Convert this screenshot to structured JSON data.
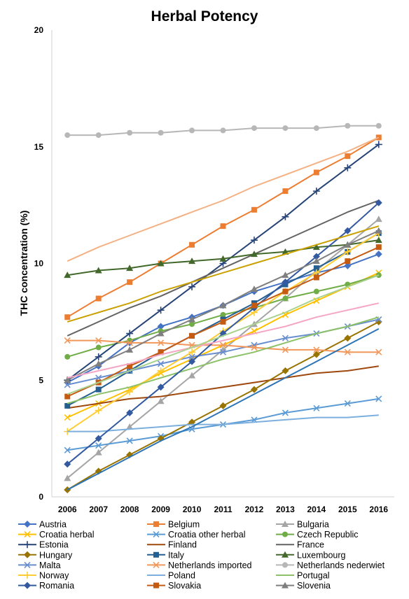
{
  "chart_data": {
    "type": "line",
    "title": "Herbal Potency",
    "xlabel": "",
    "ylabel": "THC concentration (%)",
    "ylim": [
      0,
      20
    ],
    "yticks": [
      0,
      5,
      10,
      15,
      20
    ],
    "x": [
      "2006",
      "2007",
      "2008",
      "2009",
      "2010",
      "2011",
      "2012",
      "2013",
      "2014",
      "2015",
      "2016"
    ],
    "grid": false,
    "legend_position": "bottom",
    "series": [
      {
        "name": "Austria",
        "color": "#4472C4",
        "marker": "diamond",
        "values": [
          4.9,
          5.6,
          6.6,
          7.3,
          7.7,
          8.2,
          8.8,
          9.2,
          9.6,
          9.9,
          10.4
        ]
      },
      {
        "name": "Belgium",
        "color": "#ED7D31",
        "marker": "square",
        "values": [
          7.7,
          8.5,
          9.2,
          10.0,
          10.8,
          11.6,
          12.3,
          13.1,
          13.9,
          14.6,
          15.4
        ]
      },
      {
        "name": "Bulgaria",
        "color": "#A5A5A5",
        "marker": "triangle",
        "values": [
          0.8,
          1.9,
          3.0,
          4.1,
          5.2,
          6.3,
          7.4,
          8.5,
          9.7,
          10.8,
          11.9
        ]
      },
      {
        "name": "Croatia herbal",
        "color": "#FFC000",
        "marker": "x",
        "values": [
          3.4,
          4.0,
          4.6,
          5.3,
          5.9,
          6.5,
          7.1,
          7.8,
          8.4,
          9.0,
          9.6
        ]
      },
      {
        "name": "Croatia other herbal",
        "color": "#5B9BD5",
        "marker": "x",
        "values": [
          2.0,
          2.2,
          2.4,
          2.6,
          2.9,
          3.1,
          3.3,
          3.6,
          3.8,
          4.0,
          4.2
        ]
      },
      {
        "name": "Czech Republic",
        "color": "#70AD47",
        "marker": "circle",
        "values": [
          6.0,
          6.4,
          6.7,
          7.1,
          7.4,
          7.8,
          8.1,
          8.5,
          8.8,
          9.1,
          9.5
        ]
      },
      {
        "name": "Estonia",
        "color": "#264478",
        "marker": "plus",
        "values": [
          5.0,
          6.0,
          7.0,
          8.0,
          9.0,
          10.0,
          11.0,
          12.0,
          13.1,
          14.1,
          15.1
        ]
      },
      {
        "name": "Finland",
        "color": "#9E480E",
        "marker": "none",
        "values": [
          3.8,
          4.0,
          4.2,
          4.3,
          4.5,
          4.7,
          4.9,
          5.1,
          5.3,
          5.4,
          5.6
        ]
      },
      {
        "name": "France",
        "color": "#636363",
        "marker": "none",
        "values": [
          6.9,
          7.5,
          8.1,
          8.6,
          9.2,
          9.8,
          10.4,
          11.0,
          11.6,
          12.2,
          12.7
        ]
      },
      {
        "name": "Hungary",
        "color": "#997300",
        "marker": "diamond",
        "values": [
          0.3,
          1.1,
          1.8,
          2.5,
          3.2,
          3.9,
          4.6,
          5.4,
          6.1,
          6.8,
          7.5
        ]
      },
      {
        "name": "Italy",
        "color": "#255E91",
        "marker": "square",
        "values": [
          3.9,
          4.6,
          5.4,
          6.2,
          6.9,
          7.6,
          8.3,
          9.1,
          9.8,
          10.5,
          11.3
        ]
      },
      {
        "name": "Luxembourg",
        "color": "#43682B",
        "marker": "triangle",
        "values": [
          9.5,
          9.7,
          9.8,
          10.0,
          10.1,
          10.2,
          10.4,
          10.5,
          10.7,
          10.8,
          11.0
        ]
      },
      {
        "name": "Malta",
        "color": "#698ED0",
        "marker": "x",
        "values": [
          4.8,
          5.1,
          5.4,
          5.7,
          6.0,
          6.2,
          6.5,
          6.8,
          7.0,
          7.3,
          7.6
        ]
      },
      {
        "name": "Netherlands imported",
        "color": "#F1975A",
        "marker": "x",
        "values": [
          6.7,
          6.7,
          6.6,
          6.6,
          6.5,
          6.5,
          6.4,
          6.3,
          6.3,
          6.2,
          6.2
        ]
      },
      {
        "name": "Netherlands nederwiet",
        "color": "#B7B7B7",
        "marker": "circle",
        "values": [
          15.5,
          15.5,
          15.6,
          15.6,
          15.7,
          15.7,
          15.8,
          15.8,
          15.8,
          15.9,
          15.9
        ]
      },
      {
        "name": "Norway",
        "color": "#FFCD33",
        "marker": "plus",
        "values": [
          2.8,
          3.7,
          4.5,
          5.4,
          6.2,
          7.1,
          7.9,
          8.8,
          9.6,
          10.5,
          11.3
        ]
      },
      {
        "name": "Poland",
        "color": "#7CAFDD",
        "marker": "none",
        "values": [
          2.8,
          2.8,
          2.9,
          3.0,
          3.1,
          3.1,
          3.2,
          3.3,
          3.4,
          3.4,
          3.5
        ]
      },
      {
        "name": "Portugal",
        "color": "#8CC168",
        "marker": "none",
        "values": [
          4.0,
          4.4,
          4.7,
          5.1,
          5.5,
          5.9,
          6.2,
          6.6,
          7.0,
          7.3,
          7.7
        ]
      },
      {
        "name": "Romania",
        "color": "#335AA1",
        "marker": "diamond",
        "values": [
          1.4,
          2.5,
          3.6,
          4.7,
          5.8,
          7.0,
          8.1,
          9.2,
          10.3,
          11.4,
          12.6
        ]
      },
      {
        "name": "Slovakia",
        "color": "#C55A11",
        "marker": "square",
        "values": [
          4.3,
          4.9,
          5.6,
          6.2,
          6.9,
          7.5,
          8.2,
          8.8,
          9.4,
          10.1,
          10.7
        ]
      },
      {
        "name": "Slovenia",
        "color": "#7F7F7F",
        "marker": "triangle",
        "values": [
          5.0,
          5.7,
          6.3,
          7.0,
          7.6,
          8.2,
          8.9,
          9.5,
          10.1,
          10.8,
          11.4
        ]
      },
      {
        "name": "",
        "color": "#F4B183",
        "marker": "none",
        "values": [
          10.1,
          10.7,
          11.2,
          11.7,
          12.2,
          12.7,
          13.3,
          13.8,
          14.3,
          14.8,
          15.4
        ]
      },
      {
        "name": "",
        "color": "#C9A100",
        "marker": "none",
        "values": [
          7.5,
          7.9,
          8.3,
          8.8,
          9.2,
          9.6,
          10.0,
          10.4,
          10.8,
          11.2,
          11.6
        ]
      },
      {
        "name": "",
        "color": "#F4A6C4",
        "marker": "none",
        "values": [
          5.1,
          5.4,
          5.7,
          6.1,
          6.4,
          6.7,
          7.0,
          7.3,
          7.7,
          8.0,
          8.3
        ]
      },
      {
        "name": "",
        "color": "#2E75B6",
        "marker": "none",
        "values": [
          0.3,
          1.0,
          1.7,
          2.4,
          3.0,
          3.7,
          4.4,
          5.1,
          5.8,
          6.5,
          7.2
        ]
      },
      {
        "name": "",
        "color": "#A9D18E",
        "marker": "none",
        "values": [
          4.4,
          4.9,
          5.4,
          5.9,
          6.4,
          6.9,
          7.4,
          7.9,
          8.5,
          9.0,
          9.5
        ]
      }
    ]
  }
}
